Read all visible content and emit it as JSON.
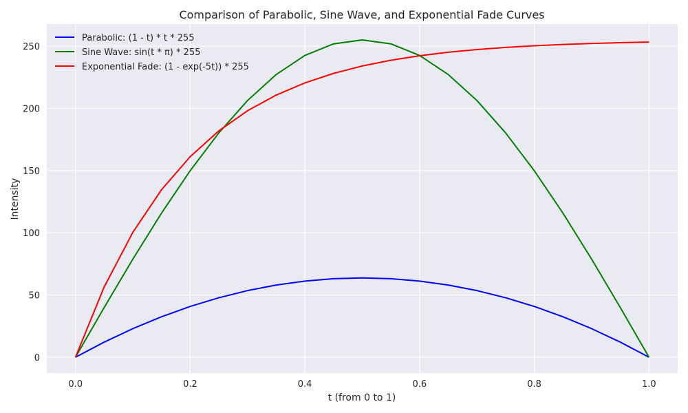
{
  "chart_data": {
    "type": "line",
    "title": "Comparison of Parabolic, Sine Wave, and Exponential Fade Curves",
    "xlabel": "t (from 0 to 1)",
    "ylabel": "Intensity",
    "xlim": [
      -0.05,
      1.05
    ],
    "ylim": [
      -12.75,
      267.75
    ],
    "xticks": [
      "0.0",
      "0.2",
      "0.4",
      "0.6",
      "0.8",
      "1.0"
    ],
    "yticks": [
      "0",
      "50",
      "100",
      "150",
      "200",
      "250"
    ],
    "grid": true,
    "legend_position": "top-left",
    "x": [
      0.0,
      0.05,
      0.1,
      0.15,
      0.2,
      0.25,
      0.3,
      0.35,
      0.4,
      0.45,
      0.5,
      0.55,
      0.6,
      0.65,
      0.7,
      0.75,
      0.8,
      0.85,
      0.9,
      0.95,
      1.0
    ],
    "series": [
      {
        "name": "Parabolic: (1 - t) * t * 255",
        "color": "#0000ff",
        "values": [
          0.0,
          12.11,
          22.95,
          32.51,
          40.8,
          47.81,
          53.55,
          58.01,
          61.2,
          63.11,
          63.75,
          63.11,
          61.2,
          58.01,
          53.55,
          47.81,
          40.8,
          32.51,
          22.95,
          12.11,
          0.0
        ]
      },
      {
        "name": "Sine Wave: sin(t * π) * 255",
        "color": "#008000",
        "values": [
          0.0,
          39.89,
          78.8,
          115.77,
          149.89,
          180.31,
          206.3,
          227.21,
          242.52,
          251.86,
          255.0,
          251.86,
          242.52,
          227.21,
          206.3,
          180.31,
          149.89,
          115.77,
          78.8,
          39.89,
          0.0
        ]
      },
      {
        "name": "Exponential Fade: (1 - exp(-5t)) * 255",
        "color": "#ff0000",
        "values": [
          0.0,
          56.41,
          100.34,
          134.56,
          161.19,
          181.93,
          198.1,
          210.68,
          220.49,
          228.12,
          234.07,
          238.7,
          242.31,
          245.11,
          247.3,
          249.01,
          250.33,
          251.36,
          252.17,
          252.79,
          253.28
        ]
      }
    ]
  }
}
